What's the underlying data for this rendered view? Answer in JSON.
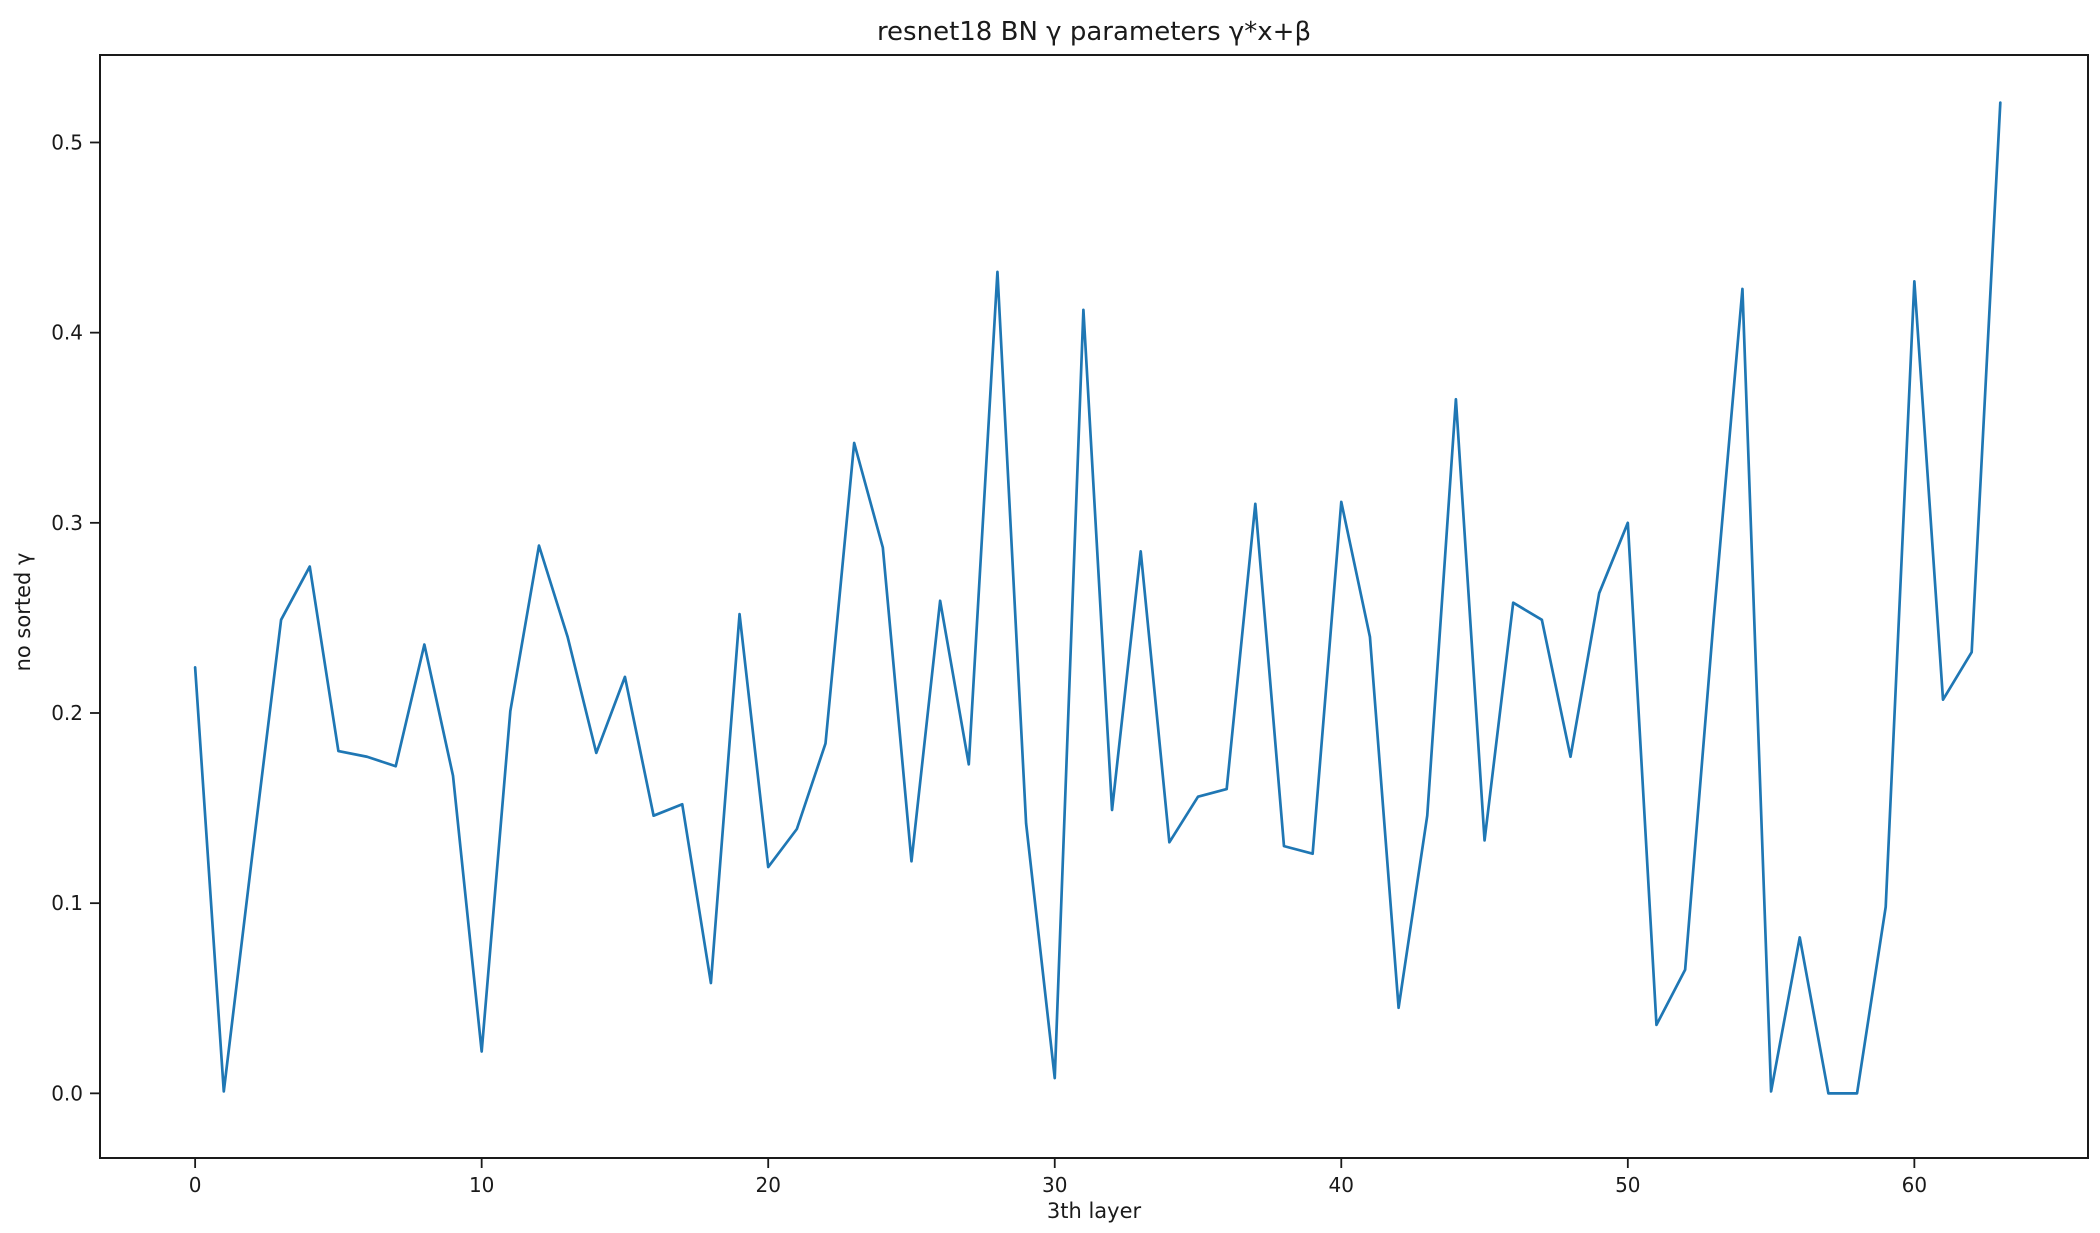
{
  "chart_data": {
    "type": "line",
    "title": "resnet18 BN γ parameters γ*x+β",
    "xlabel": "3th layer",
    "ylabel": "no sorted γ",
    "x": [
      0,
      1,
      2,
      3,
      4,
      5,
      6,
      7,
      8,
      9,
      10,
      11,
      12,
      13,
      14,
      15,
      16,
      17,
      18,
      19,
      20,
      21,
      22,
      23,
      24,
      25,
      26,
      27,
      28,
      29,
      30,
      31,
      32,
      33,
      34,
      35,
      36,
      37,
      38,
      39,
      40,
      41,
      42,
      43,
      44,
      45,
      46,
      47,
      48,
      49,
      50,
      51,
      52,
      53,
      54,
      55,
      56,
      57,
      58,
      59,
      60,
      61,
      62,
      63
    ],
    "values": [
      0.224,
      0.001,
      0.126,
      0.249,
      0.277,
      0.18,
      0.177,
      0.172,
      0.236,
      0.167,
      0.022,
      0.201,
      0.288,
      0.24,
      0.179,
      0.219,
      0.146,
      0.152,
      0.058,
      0.252,
      0.119,
      0.139,
      0.184,
      0.342,
      0.287,
      0.122,
      0.259,
      0.173,
      0.432,
      0.142,
      0.008,
      0.412,
      0.149,
      0.285,
      0.132,
      0.156,
      0.16,
      0.31,
      0.13,
      0.126,
      0.311,
      0.24,
      0.045,
      0.146,
      0.365,
      0.133,
      0.258,
      0.249,
      0.177,
      0.263,
      0.3,
      0.036,
      0.065,
      0.25,
      0.423,
      0.001,
      0.082,
      0.0,
      0.0,
      0.098,
      0.427,
      0.207,
      0.232,
      0.521
    ],
    "xlim": [
      -3.32,
      66.06
    ],
    "ylim": [
      -0.034,
      0.546
    ],
    "xticks": [
      {
        "v": 0,
        "label": "0"
      },
      {
        "v": 10,
        "label": "10"
      },
      {
        "v": 20,
        "label": "20"
      },
      {
        "v": 30,
        "label": "30"
      },
      {
        "v": 40,
        "label": "40"
      },
      {
        "v": 50,
        "label": "50"
      },
      {
        "v": 60,
        "label": "60"
      }
    ],
    "yticks": [
      {
        "v": 0.0,
        "label": "0.0"
      },
      {
        "v": 0.1,
        "label": "0.1"
      },
      {
        "v": 0.2,
        "label": "0.2"
      },
      {
        "v": 0.3,
        "label": "0.3"
      },
      {
        "v": 0.4,
        "label": "0.4"
      },
      {
        "v": 0.5,
        "label": "0.5"
      }
    ],
    "grid": false,
    "legend_position": "none",
    "line_color": "#1f77b4",
    "background_color": "#ffffff",
    "axis_color": "#1a1a1a"
  }
}
